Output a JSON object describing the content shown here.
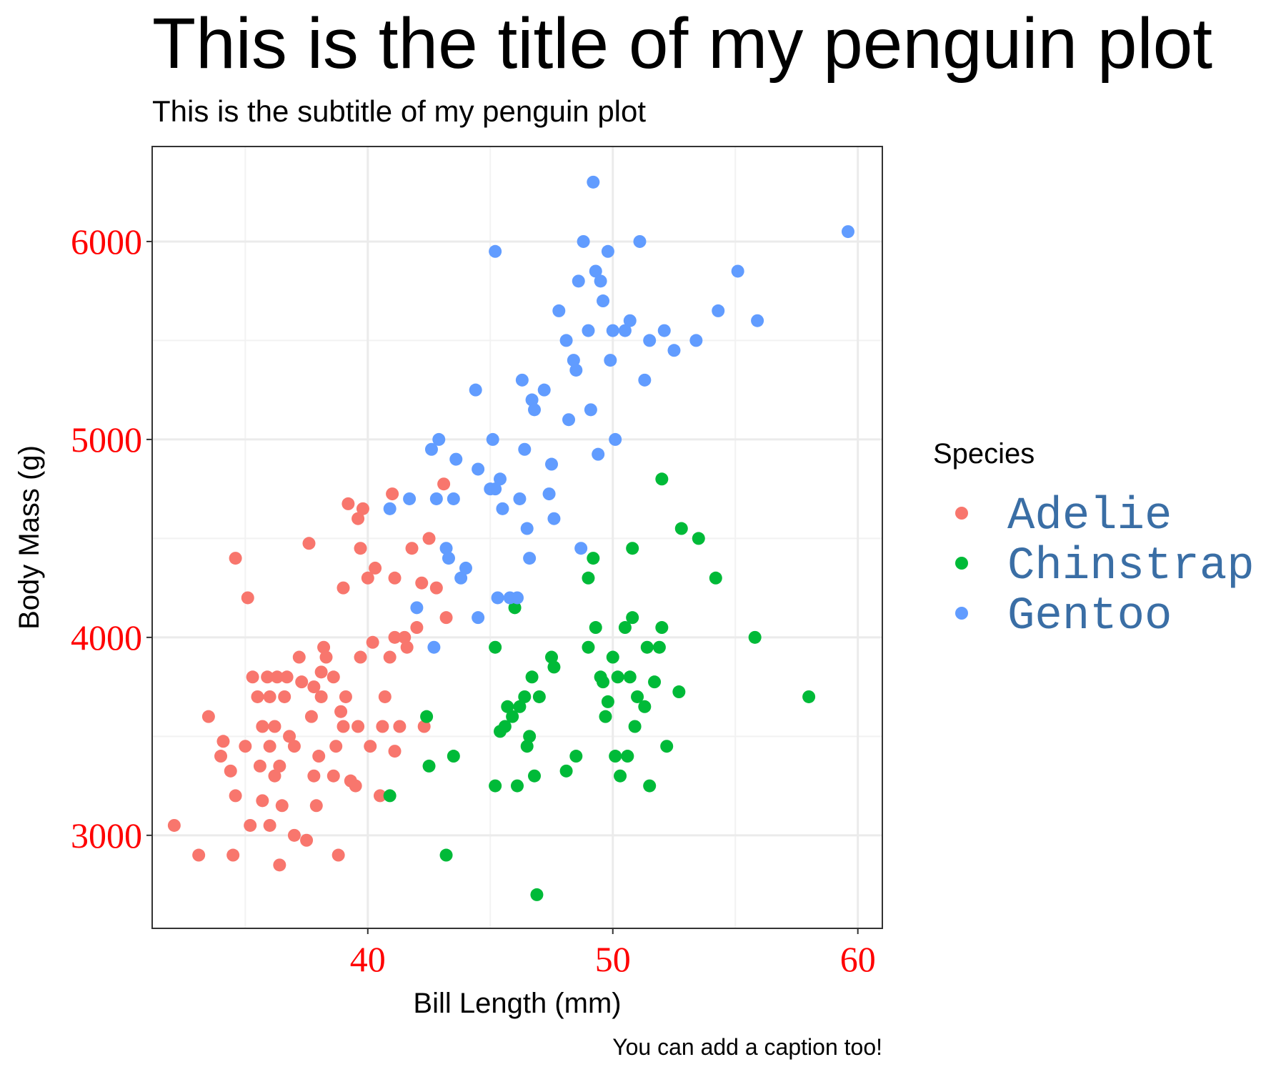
{
  "chart_data": {
    "type": "scatter",
    "title": "This is the title of my penguin plot",
    "subtitle": "This is the subtitle of my penguin plot",
    "caption": "You can add a caption too!",
    "xlabel": "Bill Length (mm)",
    "ylabel": "Body Mass (g)",
    "xlim": [
      31.2,
      61.0
    ],
    "ylim": [
      2530,
      6480
    ],
    "x_ticks": [
      40,
      50,
      60
    ],
    "y_ticks": [
      3000,
      4000,
      5000,
      6000
    ],
    "x_minor": [
      35,
      45,
      55
    ],
    "y_minor": [
      3500,
      4500,
      5500
    ],
    "grid": true,
    "legend": {
      "title": "Species",
      "position": "right"
    },
    "colors": {
      "tick_text": "#ff0000",
      "legend_text": "#3a6ea5",
      "grid_major": "#ebebeb",
      "grid_minor": "#f2f2f2",
      "panel_border": "#333333"
    },
    "series": [
      {
        "name": "Adelie",
        "color": "#f8766d",
        "points": [
          [
            32.1,
            3050
          ],
          [
            33.1,
            2900
          ],
          [
            33.5,
            3600
          ],
          [
            34.0,
            3400
          ],
          [
            34.1,
            3475
          ],
          [
            34.4,
            3325
          ],
          [
            34.5,
            2900
          ],
          [
            34.6,
            3200
          ],
          [
            34.6,
            4400
          ],
          [
            35.0,
            3450
          ],
          [
            35.1,
            4200
          ],
          [
            35.2,
            3050
          ],
          [
            35.3,
            3800
          ],
          [
            35.5,
            3700
          ],
          [
            35.6,
            3350
          ],
          [
            35.7,
            3175
          ],
          [
            35.7,
            3550
          ],
          [
            35.9,
            3800
          ],
          [
            36.0,
            3050
          ],
          [
            36.0,
            3450
          ],
          [
            36.0,
            3700
          ],
          [
            36.2,
            3300
          ],
          [
            36.2,
            3550
          ],
          [
            36.3,
            3800
          ],
          [
            36.4,
            2850
          ],
          [
            36.4,
            3350
          ],
          [
            36.5,
            3150
          ],
          [
            36.6,
            3700
          ],
          [
            36.7,
            3800
          ],
          [
            36.8,
            3500
          ],
          [
            37.0,
            3000
          ],
          [
            37.0,
            3450
          ],
          [
            37.2,
            3900
          ],
          [
            37.3,
            3775
          ],
          [
            37.5,
            2975
          ],
          [
            37.6,
            4475
          ],
          [
            37.7,
            3600
          ],
          [
            37.8,
            3300
          ],
          [
            37.8,
            3750
          ],
          [
            37.9,
            3150
          ],
          [
            38.0,
            3400
          ],
          [
            38.1,
            3700
          ],
          [
            38.1,
            3825
          ],
          [
            38.2,
            3950
          ],
          [
            38.3,
            3900
          ],
          [
            38.6,
            3800
          ],
          [
            38.6,
            3300
          ],
          [
            38.7,
            3450
          ],
          [
            38.8,
            2900
          ],
          [
            38.9,
            3625
          ],
          [
            39.0,
            3550
          ],
          [
            39.0,
            4250
          ],
          [
            39.1,
            3700
          ],
          [
            39.2,
            4675
          ],
          [
            39.3,
            3275
          ],
          [
            39.5,
            3250
          ],
          [
            39.6,
            3550
          ],
          [
            39.6,
            4600
          ],
          [
            39.7,
            3900
          ],
          [
            39.7,
            4450
          ],
          [
            39.8,
            4650
          ],
          [
            40.0,
            4300
          ],
          [
            40.1,
            3450
          ],
          [
            40.2,
            3975
          ],
          [
            40.3,
            4350
          ],
          [
            40.5,
            3200
          ],
          [
            40.6,
            3550
          ],
          [
            40.7,
            3700
          ],
          [
            40.9,
            3900
          ],
          [
            41.0,
            4725
          ],
          [
            41.1,
            3425
          ],
          [
            41.1,
            4000
          ],
          [
            41.1,
            4300
          ],
          [
            41.3,
            3550
          ],
          [
            41.5,
            4000
          ],
          [
            41.6,
            3950
          ],
          [
            41.8,
            4450
          ],
          [
            42.0,
            4050
          ],
          [
            42.2,
            4275
          ],
          [
            42.3,
            3550
          ],
          [
            42.5,
            4500
          ],
          [
            42.8,
            4250
          ],
          [
            43.1,
            4775
          ],
          [
            43.2,
            4100
          ]
        ]
      },
      {
        "name": "Chinstrap",
        "color": "#00ba38",
        "points": [
          [
            40.9,
            3200
          ],
          [
            42.4,
            3600
          ],
          [
            42.5,
            3350
          ],
          [
            43.2,
            2900
          ],
          [
            43.5,
            3400
          ],
          [
            45.2,
            3250
          ],
          [
            45.2,
            3950
          ],
          [
            45.4,
            3525
          ],
          [
            45.6,
            3550
          ],
          [
            45.7,
            3650
          ],
          [
            45.9,
            3600
          ],
          [
            46.0,
            4150
          ],
          [
            46.1,
            3250
          ],
          [
            46.2,
            3650
          ],
          [
            46.4,
            3700
          ],
          [
            46.5,
            3450
          ],
          [
            46.6,
            3500
          ],
          [
            46.7,
            3800
          ],
          [
            46.8,
            3300
          ],
          [
            46.9,
            2700
          ],
          [
            47.0,
            3700
          ],
          [
            47.5,
            3900
          ],
          [
            47.6,
            3850
          ],
          [
            48.1,
            3325
          ],
          [
            48.5,
            3400
          ],
          [
            49.0,
            3950
          ],
          [
            49.0,
            4300
          ],
          [
            49.2,
            4400
          ],
          [
            49.3,
            4050
          ],
          [
            49.5,
            3800
          ],
          [
            49.6,
            3775
          ],
          [
            49.7,
            3600
          ],
          [
            49.8,
            3675
          ],
          [
            50.0,
            3900
          ],
          [
            50.1,
            3400
          ],
          [
            50.2,
            3800
          ],
          [
            50.3,
            3300
          ],
          [
            50.5,
            4050
          ],
          [
            50.6,
            3400
          ],
          [
            50.7,
            3800
          ],
          [
            50.8,
            4100
          ],
          [
            50.8,
            4450
          ],
          [
            50.9,
            3550
          ],
          [
            51.0,
            3700
          ],
          [
            51.3,
            3650
          ],
          [
            51.4,
            3950
          ],
          [
            51.5,
            3250
          ],
          [
            51.7,
            3775
          ],
          [
            51.9,
            3950
          ],
          [
            52.0,
            4050
          ],
          [
            52.0,
            4800
          ],
          [
            52.2,
            3450
          ],
          [
            52.7,
            3725
          ],
          [
            52.8,
            4550
          ],
          [
            53.5,
            4500
          ],
          [
            54.2,
            4300
          ],
          [
            55.8,
            4000
          ],
          [
            58.0,
            3700
          ]
        ]
      },
      {
        "name": "Gentoo",
        "color": "#619cff",
        "points": [
          [
            40.9,
            4650
          ],
          [
            41.7,
            4700
          ],
          [
            42.0,
            4150
          ],
          [
            42.6,
            4950
          ],
          [
            42.7,
            3950
          ],
          [
            42.8,
            4700
          ],
          [
            42.9,
            5000
          ],
          [
            43.2,
            4450
          ],
          [
            43.3,
            4400
          ],
          [
            43.5,
            4700
          ],
          [
            43.6,
            4900
          ],
          [
            43.8,
            4300
          ],
          [
            44.0,
            4350
          ],
          [
            44.4,
            5250
          ],
          [
            44.5,
            4100
          ],
          [
            44.5,
            4850
          ],
          [
            45.0,
            4750
          ],
          [
            45.1,
            5000
          ],
          [
            45.2,
            4750
          ],
          [
            45.2,
            5950
          ],
          [
            45.3,
            4200
          ],
          [
            45.4,
            4800
          ],
          [
            45.5,
            4650
          ],
          [
            45.8,
            4200
          ],
          [
            46.1,
            4200
          ],
          [
            46.2,
            4700
          ],
          [
            46.3,
            5300
          ],
          [
            46.4,
            4950
          ],
          [
            46.5,
            4550
          ],
          [
            46.6,
            4400
          ],
          [
            46.7,
            5200
          ],
          [
            46.8,
            5150
          ],
          [
            47.2,
            5250
          ],
          [
            47.4,
            4725
          ],
          [
            47.5,
            4875
          ],
          [
            47.6,
            4600
          ],
          [
            47.8,
            5650
          ],
          [
            48.1,
            5500
          ],
          [
            48.2,
            5100
          ],
          [
            48.4,
            5400
          ],
          [
            48.5,
            5350
          ],
          [
            48.6,
            5800
          ],
          [
            48.7,
            4450
          ],
          [
            48.8,
            6000
          ],
          [
            49.0,
            5550
          ],
          [
            49.1,
            5150
          ],
          [
            49.2,
            6300
          ],
          [
            49.3,
            5850
          ],
          [
            49.4,
            4925
          ],
          [
            49.5,
            5800
          ],
          [
            49.6,
            5700
          ],
          [
            49.8,
            5950
          ],
          [
            49.9,
            5400
          ],
          [
            50.0,
            5550
          ],
          [
            50.1,
            5000
          ],
          [
            50.5,
            5550
          ],
          [
            50.7,
            5600
          ],
          [
            51.1,
            6000
          ],
          [
            51.3,
            5300
          ],
          [
            51.5,
            5500
          ],
          [
            52.1,
            5550
          ],
          [
            52.5,
            5450
          ],
          [
            53.4,
            5500
          ],
          [
            54.3,
            5650
          ],
          [
            55.1,
            5850
          ],
          [
            55.9,
            5600
          ],
          [
            59.6,
            6050
          ]
        ]
      }
    ]
  }
}
